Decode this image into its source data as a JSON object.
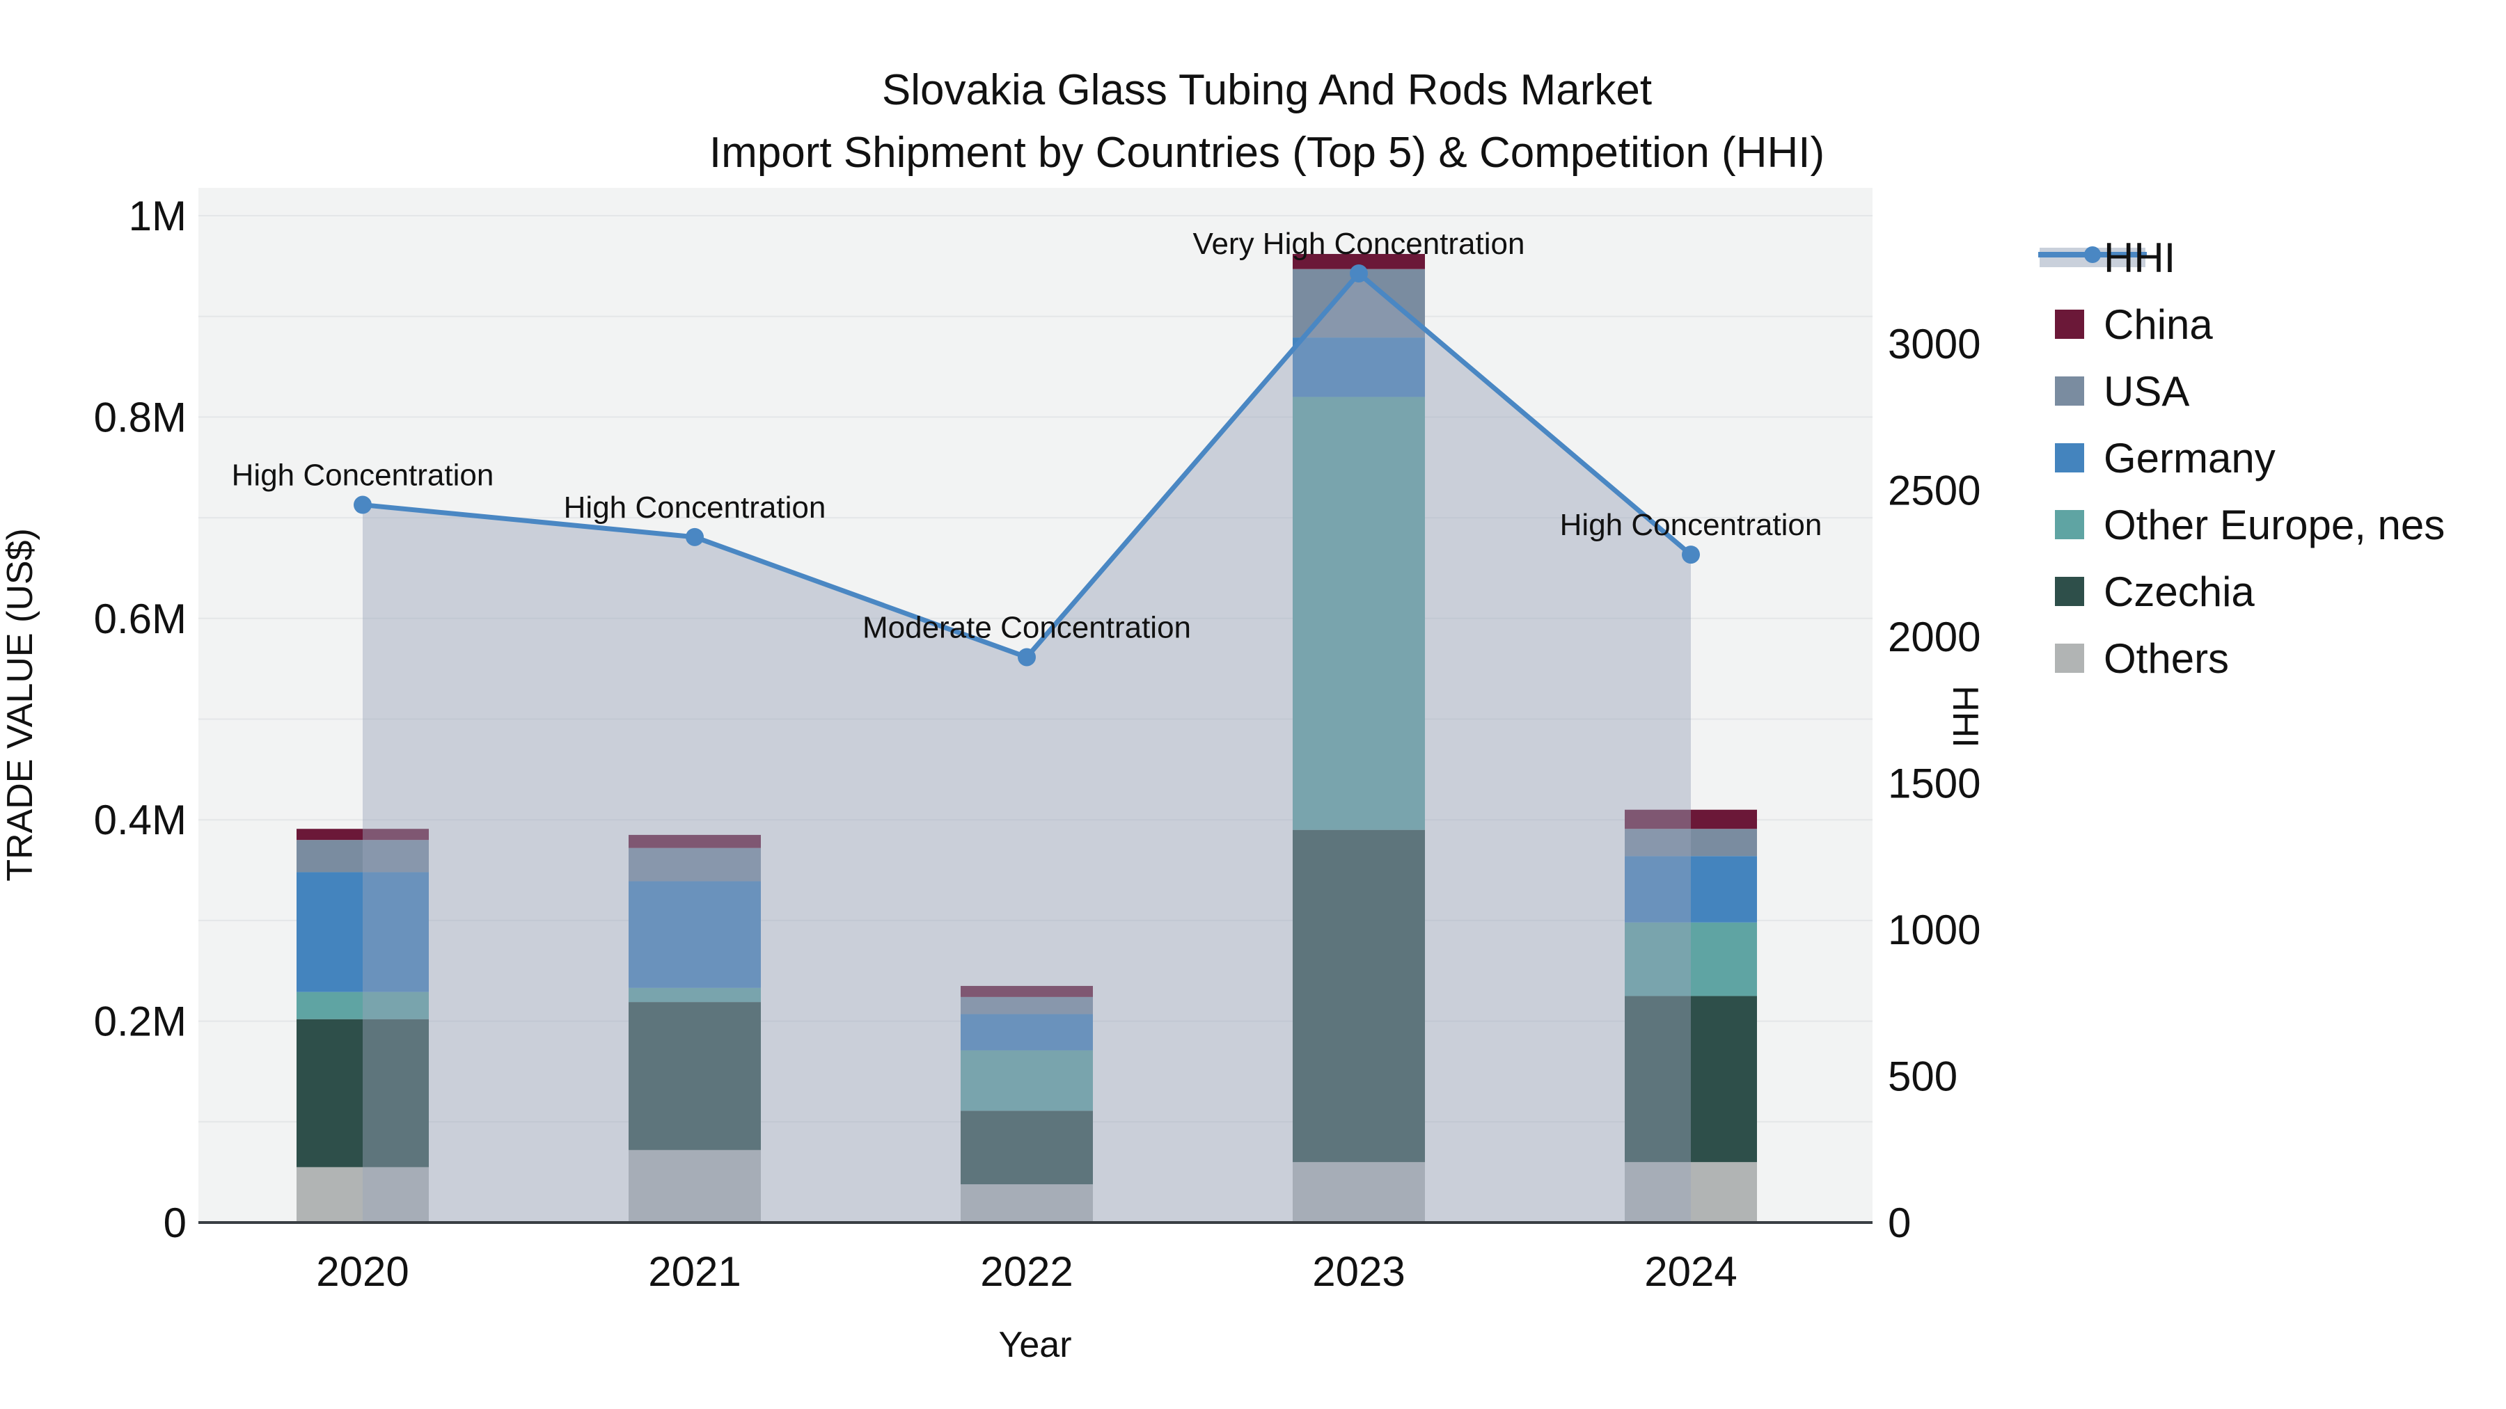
{
  "title": {
    "line1": "Slovakia Glass Tubing And Rods Market",
    "line2": "Import Shipment by Countries (Top 5) & Competition (HHI)"
  },
  "axes": {
    "y_left": {
      "title": "TRADE VALUE (US$)",
      "tick_labels": [
        "0",
        "0.2M",
        "0.4M",
        "0.6M",
        "0.8M",
        "1M"
      ],
      "tick_values": [
        0,
        200000,
        400000,
        600000,
        800000,
        1000000
      ]
    },
    "y_right": {
      "title": "HHI",
      "tick_labels": [
        "0",
        "500",
        "1000",
        "1500",
        "2000",
        "2500",
        "3000"
      ],
      "tick_values": [
        0,
        500,
        1000,
        1500,
        2000,
        2500,
        3000
      ]
    },
    "x": {
      "title": "Year",
      "tick_labels": [
        "2020",
        "2021",
        "2022",
        "2023",
        "2024"
      ]
    }
  },
  "legend": {
    "items": [
      {
        "label": "HHI",
        "type": "line",
        "color": "#4A87C3"
      },
      {
        "label": "China",
        "type": "swatch",
        "color": "#6B1838"
      },
      {
        "label": "USA",
        "type": "swatch",
        "color": "#7A8CA0"
      },
      {
        "label": "Germany",
        "type": "swatch",
        "color": "#4484BE"
      },
      {
        "label": "Other Europe, nes",
        "type": "swatch",
        "color": "#5FA4A3"
      },
      {
        "label": "Czechia",
        "type": "swatch",
        "color": "#2E4F4A"
      },
      {
        "label": "Others",
        "type": "swatch",
        "color": "#B1B4B4"
      }
    ]
  },
  "annotations": [
    {
      "year": "2020",
      "text": "High Concentration"
    },
    {
      "year": "2021",
      "text": "High Concentration"
    },
    {
      "year": "2022",
      "text": "Moderate Concentration"
    },
    {
      "year": "2023",
      "text": "Very High Concentration"
    },
    {
      "year": "2024",
      "text": "High Concentration"
    }
  ],
  "colors": {
    "plot_bg": "#F2F3F3",
    "grid": "#E4E6E8",
    "axis_line": "#3A3F44",
    "hhi_line": "#4A87C3",
    "hhi_fill": "rgba(152,164,186,0.45)",
    "legend_band": "#C9D0DB",
    "text": "#111111"
  },
  "chart_data": {
    "type": "bar+line",
    "categories": [
      "2020",
      "2021",
      "2022",
      "2023",
      "2024"
    ],
    "bar_stack_order_bottom_to_top": [
      "Others",
      "Czechia",
      "Other Europe, nes",
      "Germany",
      "USA",
      "China"
    ],
    "series": [
      {
        "name": "Others",
        "color": "#B1B4B4",
        "values": [
          55000,
          72000,
          38000,
          60000,
          60000
        ]
      },
      {
        "name": "Czechia",
        "color": "#2E4F4A",
        "values": [
          147000,
          147000,
          73000,
          330000,
          165000
        ]
      },
      {
        "name": "Other Europe, nes",
        "color": "#5FA4A3",
        "values": [
          27000,
          14000,
          60000,
          430000,
          73000
        ]
      },
      {
        "name": "Germany",
        "color": "#4484BE",
        "values": [
          119000,
          106000,
          36000,
          59000,
          66000
        ]
      },
      {
        "name": "USA",
        "color": "#7A8CA0",
        "values": [
          32000,
          33000,
          17000,
          68000,
          27000
        ]
      },
      {
        "name": "China",
        "color": "#6B1838",
        "values": [
          11000,
          13000,
          11000,
          15000,
          19000
        ]
      }
    ],
    "bar_totals": [
      391000,
      385000,
      235000,
      962000,
      410000
    ],
    "line_series": {
      "name": "HHI",
      "color": "#4A87C3",
      "values": [
        2450,
        2340,
        1930,
        3240,
        2280
      ],
      "area_fill": true
    },
    "title": "Slovakia Glass Tubing And Rods Market — Import Shipment by Countries (Top 5) & Competition (HHI)",
    "xlabel": "Year",
    "ylabel_left": "TRADE VALUE (US$)",
    "ylabel_right": "HHI",
    "ylim_left": [
      0,
      1030000
    ],
    "ylim_right": [
      0,
      3530
    ],
    "grid": true,
    "legend_position": "right"
  }
}
